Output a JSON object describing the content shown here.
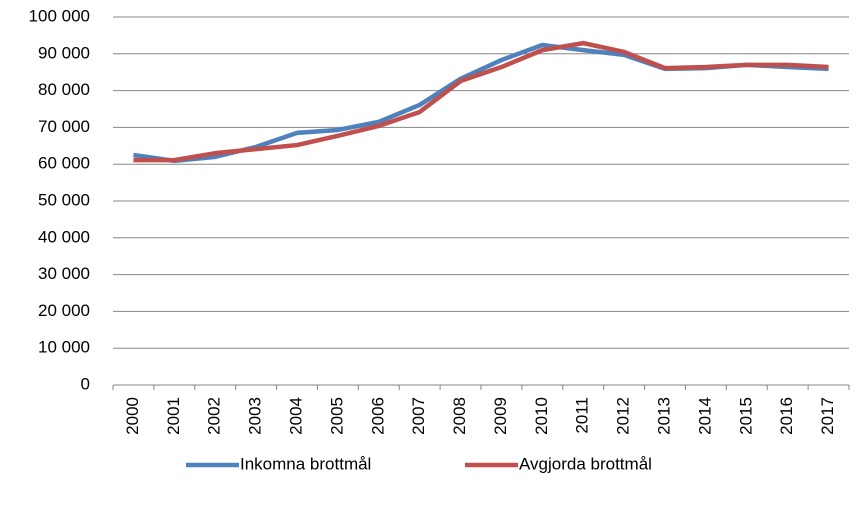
{
  "chart_data": {
    "type": "line",
    "categories": [
      "2000",
      "2001",
      "2002",
      "2003",
      "2004",
      "2005",
      "2006",
      "2007",
      "2008",
      "2009",
      "2010",
      "2011",
      "2012",
      "2013",
      "2014",
      "2015",
      "2016",
      "2017"
    ],
    "series": [
      {
        "name": "Inkomna brottmål",
        "color": "#4f81bd",
        "values": [
          62500,
          60900,
          62000,
          64700,
          68500,
          69300,
          71500,
          76100,
          83200,
          88300,
          92400,
          91000,
          89700,
          85900,
          86100,
          87000,
          86400,
          85900
        ]
      },
      {
        "name": "Avgjorda brottmål",
        "color": "#c0504d",
        "values": [
          61100,
          61100,
          63000,
          64100,
          65200,
          67700,
          70400,
          74200,
          82600,
          86400,
          91000,
          92900,
          90500,
          86100,
          86400,
          87000,
          87000,
          86400
        ]
      }
    ],
    "ylim": [
      0,
      100000
    ],
    "yticks": [
      0,
      {
        "value": 10000,
        "label": "10 000"
      },
      {
        "value": 20000,
        "label": "20 000"
      },
      {
        "value": 30000,
        "label": "30 000"
      },
      {
        "value": 40000,
        "label": "40 000"
      },
      {
        "value": 50000,
        "label": "50 000"
      },
      {
        "value": 60000,
        "label": "60 000"
      },
      {
        "value": 70000,
        "label": "70 000"
      },
      {
        "value": 80000,
        "label": "80 000"
      },
      {
        "value": 90000,
        "label": "90 000"
      },
      {
        "value": 100000,
        "label": "100 000"
      }
    ],
    "grid": true,
    "legend": "bottom"
  }
}
